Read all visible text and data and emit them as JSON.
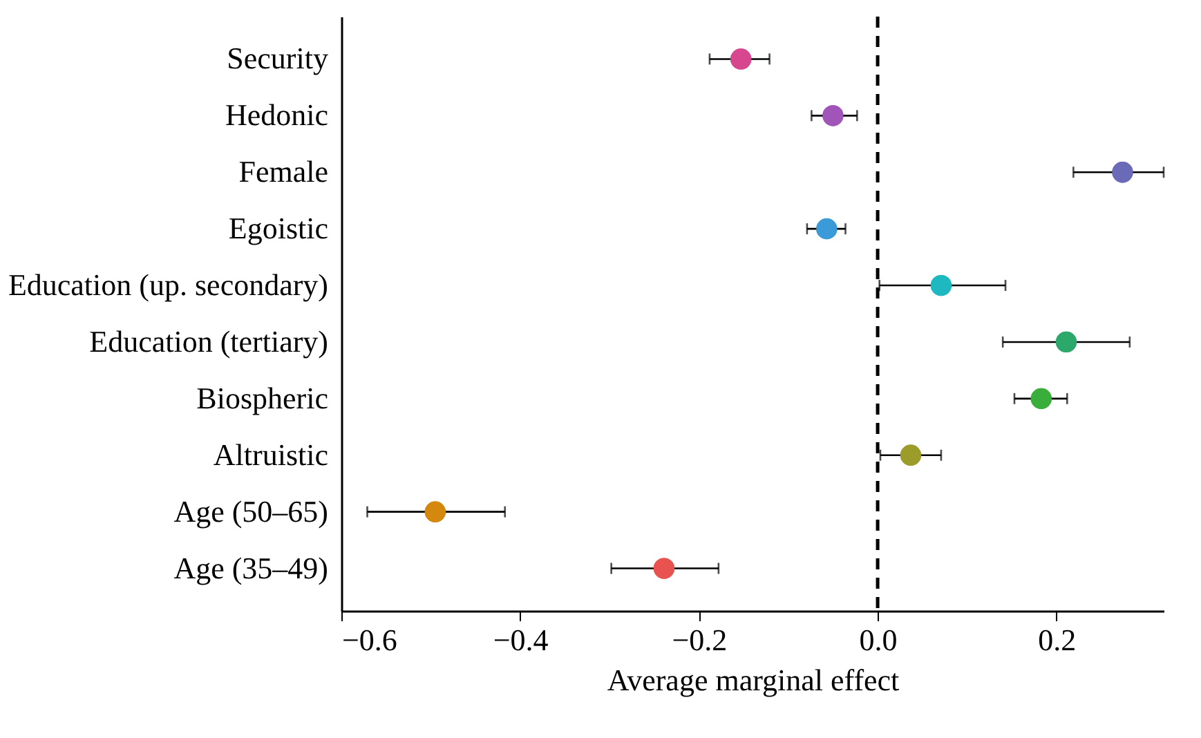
{
  "chart_data": {
    "type": "scatter",
    "orientation": "horizontal",
    "xlabel": "Average marginal effect",
    "categories": [
      "Security",
      "Hedonic",
      "Female",
      "Egoistic",
      "Education (up. secondary)",
      "Education (tertiary)",
      "Biospheric",
      "Altruistic",
      "Age (50–65)",
      "Age (35–49)"
    ],
    "values": [
      -0.153,
      -0.05,
      0.274,
      -0.057,
      0.071,
      0.211,
      0.183,
      0.037,
      -0.495,
      -0.239
    ],
    "errors": [
      [
        -0.188,
        -0.121
      ],
      [
        -0.074,
        -0.023
      ],
      [
        0.219,
        0.32
      ],
      [
        -0.079,
        -0.036
      ],
      [
        0.002,
        0.143
      ],
      [
        0.14,
        0.282
      ],
      [
        0.153,
        0.212
      ],
      [
        0.003,
        0.071
      ],
      [
        -0.571,
        -0.417
      ],
      [
        -0.298,
        -0.178
      ]
    ],
    "colors": [
      "#d6478f",
      "#a155b9",
      "#6a6ab8",
      "#3b9ad8",
      "#1db8c0",
      "#2ca86a",
      "#3aae3a",
      "#9c9c2a",
      "#d4880e",
      "#e8524f"
    ],
    "xlim": [
      -0.6,
      0.32
    ],
    "xticks": [
      {
        "value": -0.6,
        "label": "−0.6"
      },
      {
        "value": -0.4,
        "label": "−0.4"
      },
      {
        "value": -0.2,
        "label": "−0.2"
      },
      {
        "value": 0.0,
        "label": "0.0"
      },
      {
        "value": 0.2,
        "label": "0.2"
      }
    ],
    "ref_lines": [
      {
        "axis": "x",
        "value": 0,
        "color": "#000000",
        "line_style": "dashed"
      }
    ],
    "marker": "circle",
    "grid": false,
    "legend": false
  }
}
